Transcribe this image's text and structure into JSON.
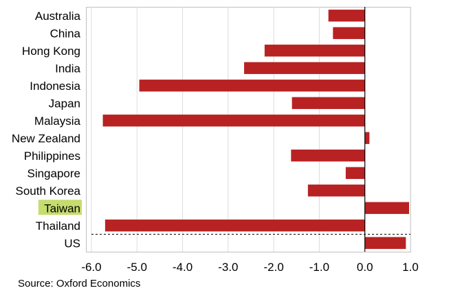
{
  "chart_data": {
    "type": "bar",
    "orientation": "horizontal",
    "categories": [
      "Australia",
      "China",
      "Hong Kong",
      "India",
      "Indonesia",
      "Japan",
      "Malaysia",
      "New Zealand",
      "Philippines",
      "Singapore",
      "South Korea",
      "Taiwan",
      "Thailand",
      "US"
    ],
    "values": [
      -0.8,
      -0.7,
      -2.2,
      -2.65,
      -4.95,
      -1.6,
      -5.75,
      0.1,
      -1.62,
      -0.42,
      -1.25,
      0.97,
      -5.7,
      0.9
    ],
    "xlim": [
      -6.0,
      1.0
    ],
    "xticks": [
      "-6.0",
      "-5.0",
      "-4.0",
      "-3.0",
      "-2.0",
      "-1.0",
      "0.0",
      "1.0"
    ],
    "xtick_values": [
      -6,
      -5,
      -4,
      -3,
      -2,
      -1,
      0,
      1
    ],
    "highlighted_category": "Taiwan",
    "highlight_color": "#c5dc6e",
    "bar_color": "#b82222",
    "grid": "vertical",
    "dashed_separator_before": "US"
  },
  "source": "Source: Oxford Economics"
}
